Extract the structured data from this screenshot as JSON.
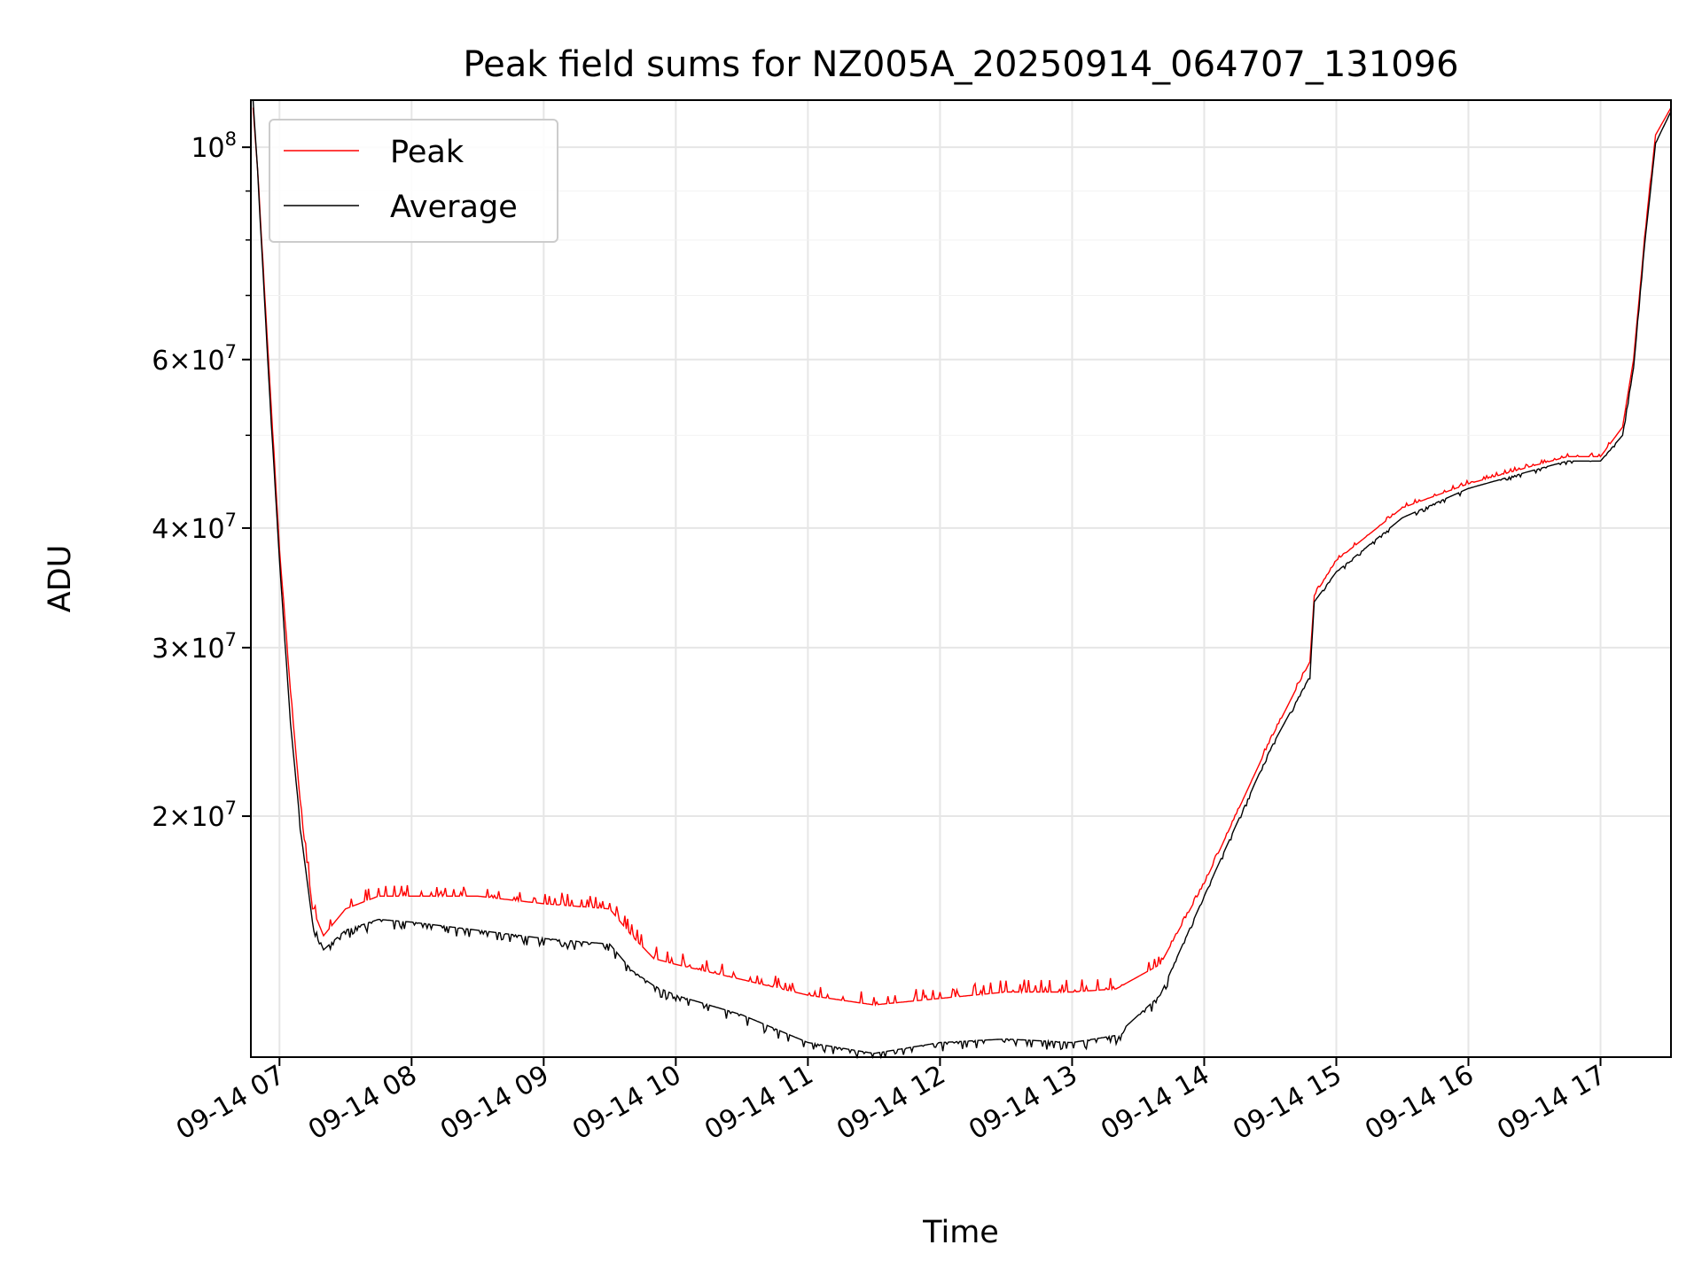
{
  "chart_data": {
    "type": "line",
    "title": "Peak field sums for NZ005A_20250914_064707_131096",
    "xlabel": "Time",
    "ylabel": "ADU",
    "yscale": "log",
    "grid": true,
    "legend_position": "upper-left",
    "xlim": [
      "2025-09-14 06:47",
      "2025-09-14 17:32"
    ],
    "ylim": [
      11200000,
      112000000
    ],
    "x_ticks": [
      "09-14 07",
      "09-14 08",
      "09-14 09",
      "09-14 10",
      "09-14 11",
      "09-14 12",
      "09-14 13",
      "09-14 14",
      "09-14 15",
      "09-14 16",
      "09-14 17"
    ],
    "y_ticks": [
      {
        "value": 20000000,
        "mantissa": "2",
        "base": "10",
        "exp": "7"
      },
      {
        "value": 30000000,
        "mantissa": "3",
        "base": "10",
        "exp": "7"
      },
      {
        "value": 40000000,
        "mantissa": "4",
        "base": "10",
        "exp": "7"
      },
      {
        "value": 60000000,
        "mantissa": "6",
        "base": "10",
        "exp": "7"
      },
      {
        "value": 100000000,
        "mantissa": "",
        "base": "10",
        "exp": "8"
      }
    ],
    "series": [
      {
        "name": "Peak",
        "color": "#ff0000",
        "x": [
          "2025-09-14 06:48",
          "2025-09-14 06:50",
          "2025-09-14 06:55",
          "2025-09-14 07:00",
          "2025-09-14 07:05",
          "2025-09-14 07:10",
          "2025-09-14 07:15",
          "2025-09-14 07:20",
          "2025-09-14 07:30",
          "2025-09-14 07:45",
          "2025-09-14 08:00",
          "2025-09-14 08:30",
          "2025-09-14 09:00",
          "2025-09-14 09:30",
          "2025-09-14 09:40",
          "2025-09-14 09:50",
          "2025-09-14 10:00",
          "2025-09-14 10:30",
          "2025-09-14 11:00",
          "2025-09-14 11:30",
          "2025-09-14 12:00",
          "2025-09-14 12:30",
          "2025-09-14 13:00",
          "2025-09-14 13:20",
          "2025-09-14 13:40",
          "2025-09-14 14:00",
          "2025-09-14 14:30",
          "2025-09-14 14:48",
          "2025-09-14 14:50",
          "2025-09-14 15:00",
          "2025-09-14 15:30",
          "2025-09-14 16:00",
          "2025-09-14 16:30",
          "2025-09-14 16:45",
          "2025-09-14 17:00",
          "2025-09-14 17:10",
          "2025-09-14 17:15",
          "2025-09-14 17:20",
          "2025-09-14 17:25",
          "2025-09-14 17:32"
        ],
        "y": [
          110000000,
          95000000,
          60000000,
          38000000,
          27000000,
          20000000,
          16000000,
          15000000,
          16000000,
          16500000,
          16500000,
          16500000,
          16200000,
          16000000,
          15000000,
          14200000,
          14000000,
          13500000,
          13000000,
          12700000,
          12900000,
          13100000,
          13100000,
          13200000,
          14000000,
          17000000,
          24000000,
          29000000,
          34000000,
          37000000,
          42000000,
          44500000,
          46500000,
          47500000,
          47500000,
          51000000,
          60000000,
          80000000,
          103000000,
          110000000
        ]
      },
      {
        "name": "Average",
        "color": "#000000",
        "x": [
          "2025-09-14 06:48",
          "2025-09-14 06:50",
          "2025-09-14 06:55",
          "2025-09-14 07:00",
          "2025-09-14 07:05",
          "2025-09-14 07:10",
          "2025-09-14 07:15",
          "2025-09-14 07:20",
          "2025-09-14 07:30",
          "2025-09-14 07:45",
          "2025-09-14 08:00",
          "2025-09-14 08:30",
          "2025-09-14 09:00",
          "2025-09-14 09:30",
          "2025-09-14 09:40",
          "2025-09-14 09:50",
          "2025-09-14 10:00",
          "2025-09-14 10:30",
          "2025-09-14 11:00",
          "2025-09-14 11:30",
          "2025-09-14 12:00",
          "2025-09-14 12:30",
          "2025-09-14 13:00",
          "2025-09-14 13:20",
          "2025-09-14 13:40",
          "2025-09-14 14:00",
          "2025-09-14 14:30",
          "2025-09-14 14:48",
          "2025-09-14 14:50",
          "2025-09-14 15:00",
          "2025-09-14 15:30",
          "2025-09-14 16:00",
          "2025-09-14 16:30",
          "2025-09-14 16:45",
          "2025-09-14 17:00",
          "2025-09-14 17:10",
          "2025-09-14 17:15",
          "2025-09-14 17:20",
          "2025-09-14 17:25",
          "2025-09-14 17:32"
        ],
        "y": [
          112000000,
          95000000,
          58000000,
          37000000,
          25000000,
          19000000,
          15500000,
          14500000,
          15200000,
          15600000,
          15500000,
          15200000,
          14900000,
          14700000,
          13800000,
          13300000,
          13000000,
          12400000,
          11600000,
          11300000,
          11600000,
          11700000,
          11600000,
          11800000,
          13000000,
          16500000,
          23500000,
          28000000,
          33500000,
          36000000,
          41000000,
          44000000,
          46000000,
          47000000,
          47000000,
          50000000,
          59000000,
          79000000,
          101000000,
          109000000
        ]
      }
    ]
  }
}
